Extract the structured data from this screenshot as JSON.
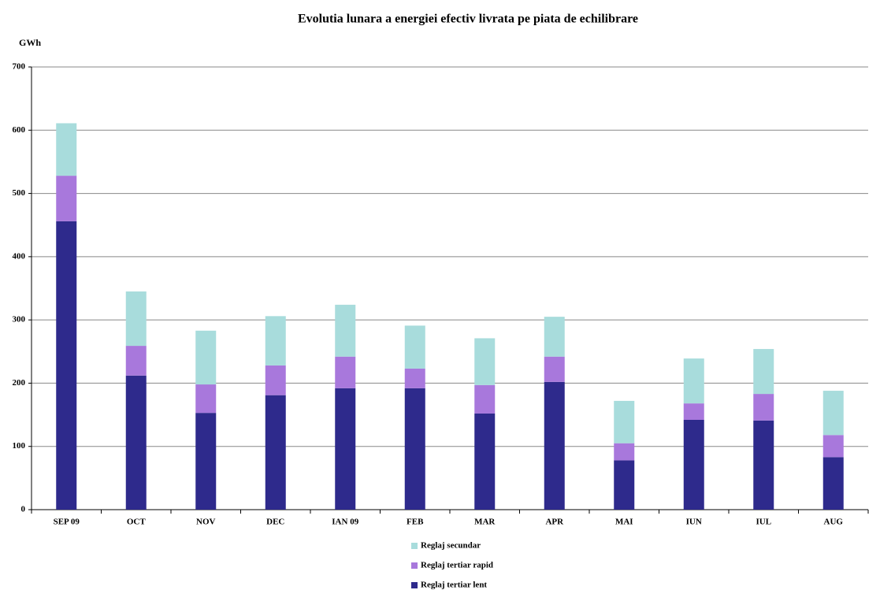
{
  "chart_data": {
    "type": "stacked_bar",
    "title": "Evolutia lunara a energiei efectiv livrata pe piata de echilibrare",
    "y_label": "GWh",
    "categories": [
      "SEP 09",
      "OCT",
      "NOV",
      "DEC",
      "IAN 09",
      "FEB",
      "MAR",
      "APR",
      "MAI",
      "IUN",
      "IUL",
      "AUG"
    ],
    "series": [
      {
        "name": "Reglaj tertiar lent",
        "color": "#2e2a8c",
        "values": [
          456,
          212,
          153,
          181,
          192,
          192,
          152,
          202,
          78,
          142,
          141,
          83
        ]
      },
      {
        "name": "Reglaj tertiar rapid",
        "color": "#a878dc",
        "values": [
          72,
          47,
          45,
          47,
          50,
          31,
          45,
          40,
          27,
          26,
          42,
          35
        ]
      },
      {
        "name": "Reglaj secundar",
        "color": "#a8dcdc",
        "values": [
          83,
          86,
          85,
          78,
          82,
          68,
          74,
          63,
          67,
          71,
          71,
          70
        ]
      }
    ],
    "ylim": [
      0,
      700
    ],
    "yticks": [
      0,
      100,
      200,
      300,
      400,
      500,
      600,
      700
    ],
    "grid": true
  }
}
